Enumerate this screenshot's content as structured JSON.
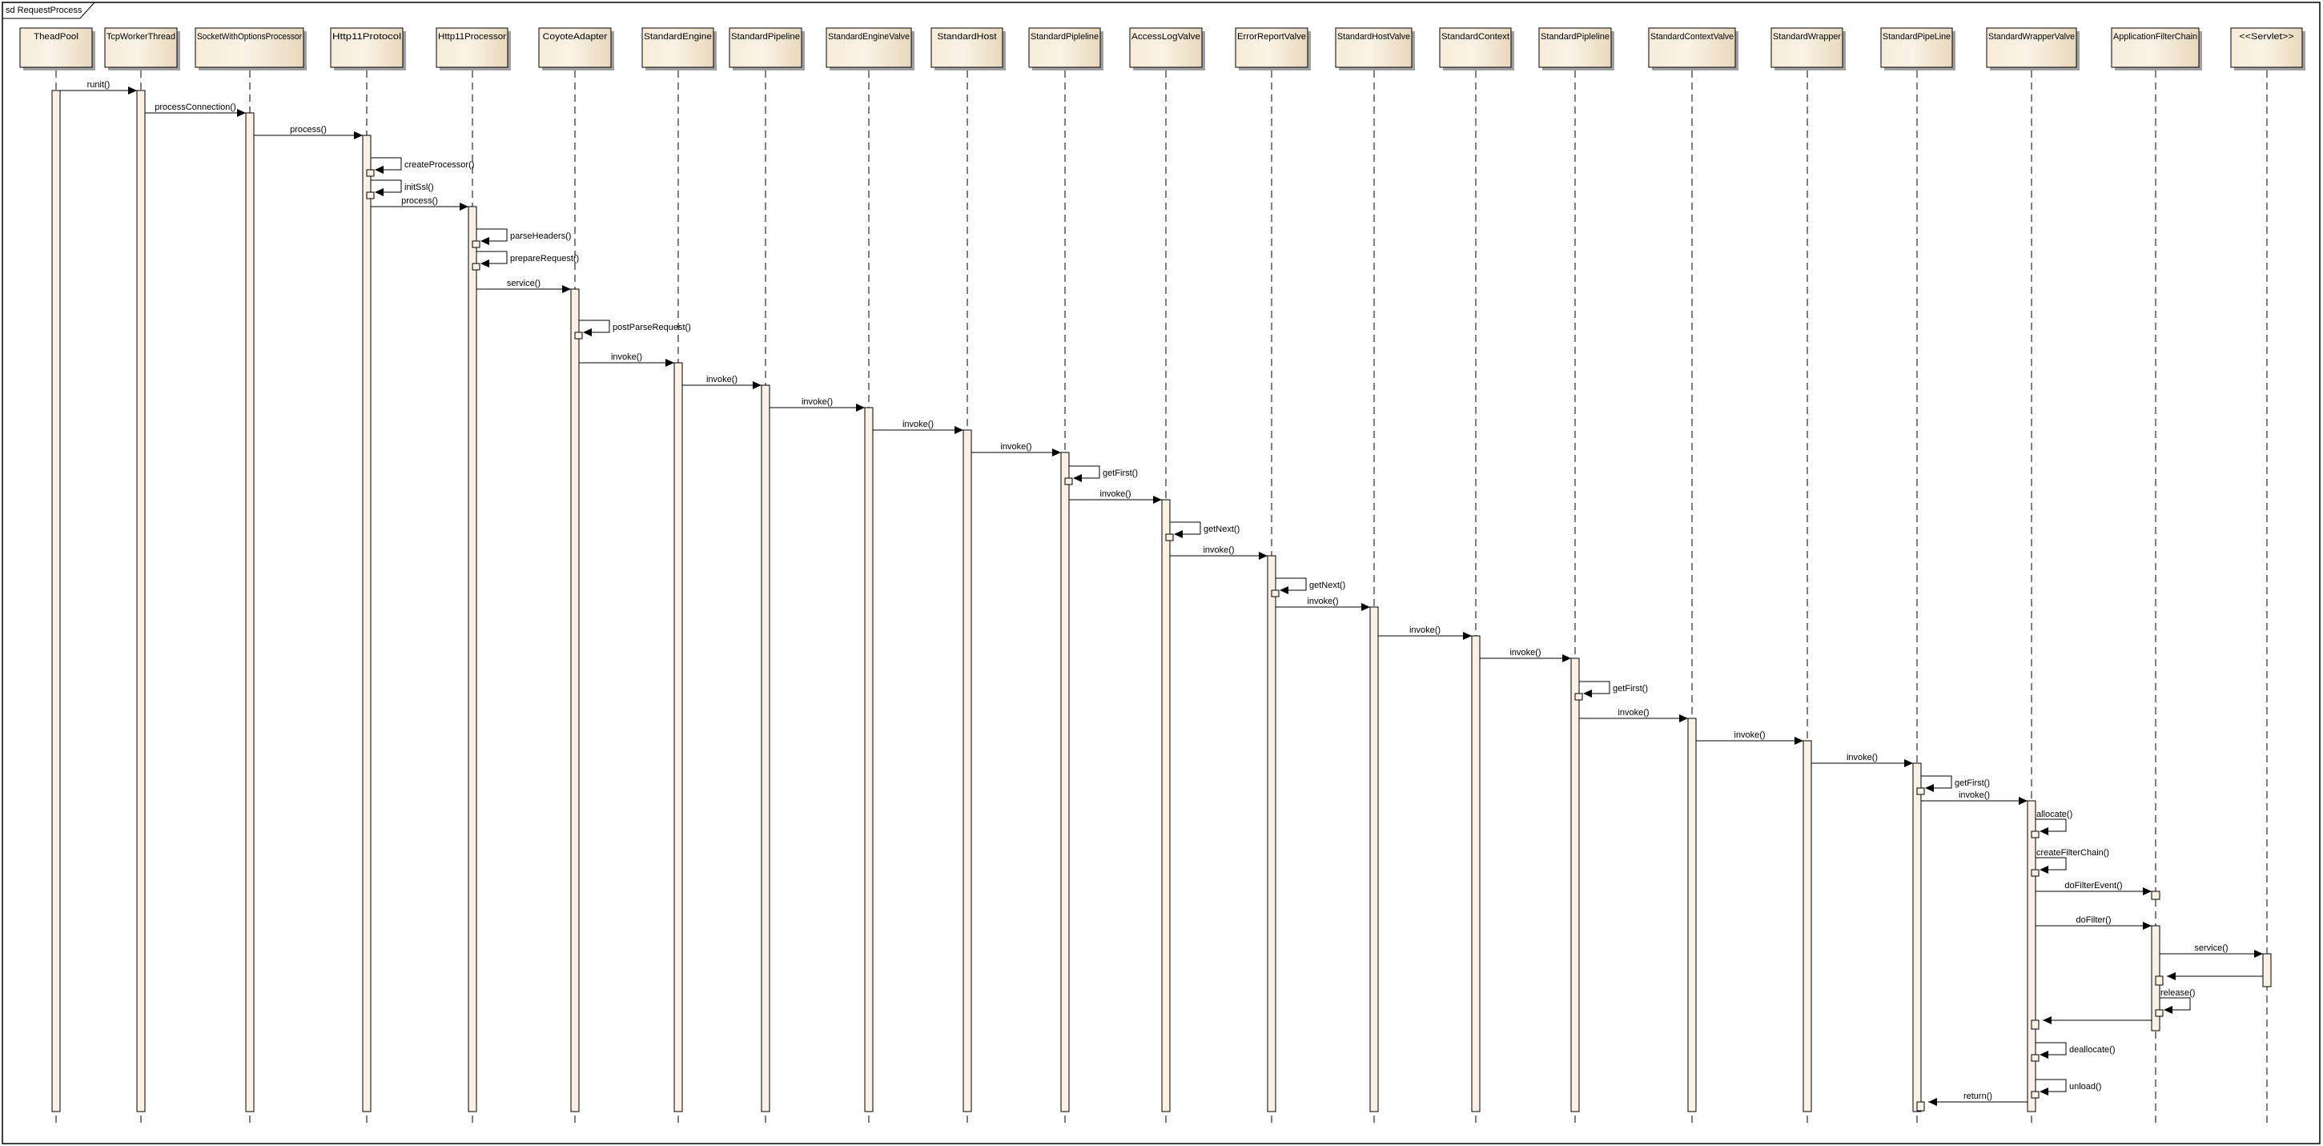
{
  "frame": {
    "title": "sd RequestProcess"
  },
  "colors": {
    "box_fill_light": "#fbf3e6",
    "box_fill_dark": "#e8d8bd",
    "activation_fill": "#faf1e4",
    "line": "#000000",
    "shadow": "#9a9a9a"
  },
  "participants": [
    "TheadPool",
    "TcpWorkerThread",
    "SocketWithOptionsProcessor",
    "Http11Protocol",
    "Http11Processor",
    "CoyoteAdapter",
    "StandardEngine",
    "StandardPipeline",
    "StandardEngineValve",
    "StandardHost",
    "StandardPipleline",
    "AccessLogValve",
    "ErrorReportValve",
    "StandardHostValve",
    "StandardContext",
    "StandardPipleline",
    "StandardContextValve",
    "StandardWrapper",
    "StandardPipeLine",
    "StandardWrapperValve",
    "ApplicationFilterChain",
    "<<Servlet>>"
  ],
  "messages": [
    {
      "from": 0,
      "to": 1,
      "label": "runit()",
      "kind": "call"
    },
    {
      "from": 1,
      "to": 2,
      "label": "processConnection()",
      "kind": "call"
    },
    {
      "from": 2,
      "to": 3,
      "label": "process()",
      "kind": "call"
    },
    {
      "from": 3,
      "to": 3,
      "label": "createProcessor()",
      "kind": "self"
    },
    {
      "from": 3,
      "to": 3,
      "label": "initSsl()",
      "kind": "self"
    },
    {
      "from": 3,
      "to": 4,
      "label": "process()",
      "kind": "call"
    },
    {
      "from": 4,
      "to": 4,
      "label": "parseHeaders()",
      "kind": "self"
    },
    {
      "from": 4,
      "to": 4,
      "label": "prepareRequest()",
      "kind": "self"
    },
    {
      "from": 4,
      "to": 5,
      "label": "service()",
      "kind": "call"
    },
    {
      "from": 5,
      "to": 5,
      "label": "postParseRequest()",
      "kind": "self"
    },
    {
      "from": 5,
      "to": 6,
      "label": "invoke()",
      "kind": "call"
    },
    {
      "from": 6,
      "to": 7,
      "label": "invoke()",
      "kind": "call"
    },
    {
      "from": 7,
      "to": 8,
      "label": "invoke()",
      "kind": "call"
    },
    {
      "from": 8,
      "to": 9,
      "label": "invoke()",
      "kind": "call"
    },
    {
      "from": 9,
      "to": 10,
      "label": "invoke()",
      "kind": "call"
    },
    {
      "from": 10,
      "to": 10,
      "label": "getFirst()",
      "kind": "self"
    },
    {
      "from": 10,
      "to": 11,
      "label": "invoke()",
      "kind": "call"
    },
    {
      "from": 11,
      "to": 11,
      "label": "getNext()",
      "kind": "self"
    },
    {
      "from": 11,
      "to": 12,
      "label": "invoke()",
      "kind": "call"
    },
    {
      "from": 12,
      "to": 12,
      "label": "getNext()",
      "kind": "self"
    },
    {
      "from": 12,
      "to": 13,
      "label": "invoke()",
      "kind": "call"
    },
    {
      "from": 13,
      "to": 14,
      "label": "invoke()",
      "kind": "call"
    },
    {
      "from": 14,
      "to": 15,
      "label": "invoke()",
      "kind": "call"
    },
    {
      "from": 15,
      "to": 15,
      "label": "getFirst()",
      "kind": "self"
    },
    {
      "from": 15,
      "to": 16,
      "label": "invoke()",
      "kind": "call"
    },
    {
      "from": 16,
      "to": 17,
      "label": "invoke()",
      "kind": "call"
    },
    {
      "from": 17,
      "to": 18,
      "label": "invoke()",
      "kind": "call"
    },
    {
      "from": 18,
      "to": 18,
      "label": "getFirst()",
      "kind": "self"
    },
    {
      "from": 18,
      "to": 19,
      "label": "invoke()",
      "kind": "call"
    },
    {
      "from": 19,
      "to": 19,
      "label": "allocate()",
      "kind": "self"
    },
    {
      "from": 19,
      "to": 19,
      "label": "createFilterChain()",
      "kind": "self"
    },
    {
      "from": 19,
      "to": 20,
      "label": "doFilterEvent()",
      "kind": "call"
    },
    {
      "from": 19,
      "to": 20,
      "label": "doFilter()",
      "kind": "call"
    },
    {
      "from": 20,
      "to": 21,
      "label": "service()",
      "kind": "call"
    },
    {
      "from": 21,
      "to": 20,
      "label": "",
      "kind": "return"
    },
    {
      "from": 20,
      "to": 20,
      "label": "release()",
      "kind": "self"
    },
    {
      "from": 20,
      "to": 19,
      "label": "",
      "kind": "return"
    },
    {
      "from": 19,
      "to": 19,
      "label": "deallocate()",
      "kind": "self"
    },
    {
      "from": 19,
      "to": 19,
      "label": "unload()",
      "kind": "self"
    },
    {
      "from": 19,
      "to": 18,
      "label": "return()",
      "kind": "return"
    }
  ]
}
